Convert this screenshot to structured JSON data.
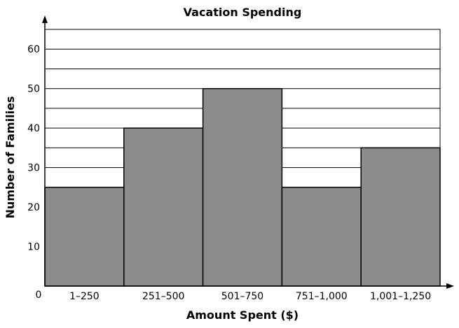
{
  "chart_data": {
    "type": "bar",
    "title": "Vacation Spending",
    "xlabel": "Amount Spent ($)",
    "ylabel": "Number of Families",
    "categories": [
      "1–250",
      "251–500",
      "501–750",
      "751–1,000",
      "1,001–1,250"
    ],
    "values": [
      25,
      40,
      50,
      25,
      35
    ],
    "ylim": [
      0,
      65
    ],
    "yticks": [
      10,
      20,
      30,
      40,
      50,
      60
    ],
    "origin_label": "0",
    "grid": true,
    "bar_color": "#8c8c8c"
  }
}
